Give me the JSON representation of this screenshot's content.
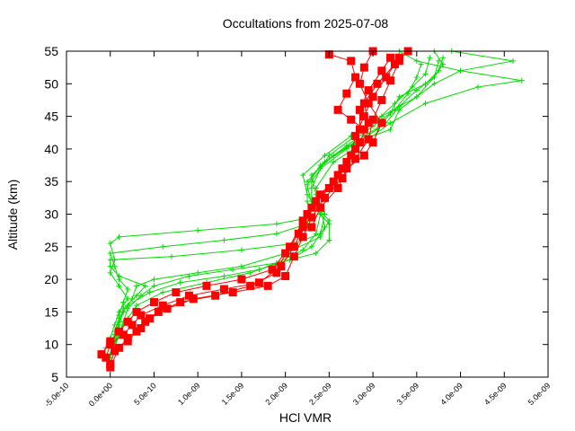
{
  "chart_data": {
    "type": "scatter",
    "title": "Occultations from 2025-07-08",
    "xlabel": "HCl VMR",
    "ylabel": "Altitude (km)",
    "xlim": [
      -5e-10,
      5e-09
    ],
    "ylim": [
      5,
      55
    ],
    "xticks": [
      {
        "value": -5e-10,
        "label": "-5.0e-10"
      },
      {
        "value": 0,
        "label": "0.0e+00"
      },
      {
        "value": 5e-10,
        "label": "5.0e-10"
      },
      {
        "value": 1e-09,
        "label": "1.0e-09"
      },
      {
        "value": 1.5e-09,
        "label": "1.5e-09"
      },
      {
        "value": 2e-09,
        "label": "2.0e-09"
      },
      {
        "value": 2.5e-09,
        "label": "2.5e-09"
      },
      {
        "value": 3e-09,
        "label": "3.0e-09"
      },
      {
        "value": 3.5e-09,
        "label": "3.5e-09"
      },
      {
        "value": 4e-09,
        "label": "4.0e-09"
      },
      {
        "value": 4.5e-09,
        "label": "4.5e-09"
      },
      {
        "value": 5e-09,
        "label": "5.0e-09"
      }
    ],
    "yticks": [
      {
        "value": 5,
        "label": "5"
      },
      {
        "value": 10,
        "label": "10"
      },
      {
        "value": 15,
        "label": "15"
      },
      {
        "value": 20,
        "label": "20"
      },
      {
        "value": 25,
        "label": "25"
      },
      {
        "value": 30,
        "label": "30"
      },
      {
        "value": 35,
        "label": "35"
      },
      {
        "value": 40,
        "label": "40"
      },
      {
        "value": 45,
        "label": "45"
      },
      {
        "value": 50,
        "label": "50"
      },
      {
        "value": 55,
        "label": "55"
      }
    ],
    "colors": {
      "red": "#ff0000",
      "green": "#00dd00"
    },
    "series": [
      {
        "name": "green-profile-1",
        "color": "#00dd00",
        "marker": "plus",
        "line": true,
        "points": [
          [
            0.0,
            8
          ],
          [
            3e-11,
            10
          ],
          [
            5e-11,
            12
          ],
          [
            1e-10,
            14
          ],
          [
            2e-10,
            16
          ],
          [
            4.5e-10,
            18
          ],
          [
            8e-10,
            19.5
          ],
          [
            1.3e-09,
            20.5
          ],
          [
            1.7e-09,
            21.5
          ],
          [
            2.05e-09,
            23
          ],
          [
            2.3e-09,
            25
          ],
          [
            2.45e-09,
            28
          ],
          [
            2.4e-09,
            31
          ],
          [
            2.35e-09,
            34
          ],
          [
            2.55e-09,
            38
          ],
          [
            2.9e-09,
            41
          ],
          [
            3.2e-09,
            44
          ],
          [
            3.6e-09,
            47
          ],
          [
            4.2e-09,
            49.5
          ],
          [
            4.7e-09,
            50.5
          ],
          [
            4e-09,
            52
          ],
          [
            3.5e-09,
            53.5
          ],
          [
            3.3e-09,
            55
          ]
        ]
      },
      {
        "name": "green-profile-2",
        "color": "#00dd00",
        "marker": "plus",
        "line": true,
        "points": [
          [
            5e-11,
            9
          ],
          [
            5e-11,
            11
          ],
          [
            1e-10,
            13
          ],
          [
            1.5e-10,
            15
          ],
          [
            2.5e-10,
            17
          ],
          [
            3e-10,
            19
          ],
          [
            5e-10,
            20
          ],
          [
            1e-09,
            21
          ],
          [
            1.5e-09,
            22
          ],
          [
            2e-09,
            24
          ],
          [
            2.4e-09,
            26.5
          ],
          [
            2.5e-09,
            29
          ],
          [
            2.3e-09,
            32
          ],
          [
            2.3e-09,
            35
          ],
          [
            2.5e-09,
            39
          ],
          [
            2.8e-09,
            42
          ],
          [
            3.1e-09,
            45
          ],
          [
            3.5e-09,
            48
          ],
          [
            3.7e-09,
            50
          ],
          [
            4e-09,
            52
          ],
          [
            4.6e-09,
            53.5
          ],
          [
            3.9e-09,
            55
          ]
        ]
      },
      {
        "name": "green-profile-3",
        "color": "#00dd00",
        "marker": "plus",
        "line": true,
        "points": [
          [
            -5e-11,
            9.5
          ],
          [
            0.0,
            11
          ],
          [
            5e-11,
            13
          ],
          [
            1e-10,
            15
          ],
          [
            2e-10,
            17
          ],
          [
            1e-10,
            19
          ],
          [
            0.0,
            21
          ],
          [
            5e-11,
            23
          ],
          [
            0.0,
            25.5
          ],
          [
            1e-10,
            26.5
          ],
          [
            1e-09,
            27.5
          ],
          [
            1.9e-09,
            28.5
          ],
          [
            2.3e-09,
            29.5
          ],
          [
            2.25e-09,
            32
          ],
          [
            2.25e-09,
            35
          ],
          [
            2.45e-09,
            38
          ],
          [
            2.8e-09,
            41
          ],
          [
            3.2e-09,
            43
          ],
          [
            3.3e-09,
            46
          ],
          [
            3.5e-09,
            48
          ],
          [
            3.7e-09,
            51
          ],
          [
            3.8e-09,
            53
          ],
          [
            3.7e-09,
            55
          ]
        ]
      },
      {
        "name": "green-profile-4",
        "color": "#00dd00",
        "marker": "plus",
        "line": true,
        "points": [
          [
            0.0,
            8.5
          ],
          [
            5e-11,
            10.5
          ],
          [
            1e-10,
            12.5
          ],
          [
            1e-10,
            14.5
          ],
          [
            1.5e-10,
            16.5
          ],
          [
            2e-10,
            18.5
          ],
          [
            1e-10,
            20
          ],
          [
            5e-11,
            22
          ],
          [
            0.0,
            24
          ],
          [
            6e-10,
            25
          ],
          [
            1.3e-09,
            26
          ],
          [
            1.9e-09,
            27
          ],
          [
            2.25e-09,
            28.5
          ],
          [
            2.3e-09,
            31
          ],
          [
            2.3e-09,
            34
          ],
          [
            2.4e-09,
            37
          ],
          [
            2.7e-09,
            40
          ],
          [
            3.05e-09,
            43
          ],
          [
            3.2e-09,
            45.5
          ],
          [
            3.3e-09,
            48
          ],
          [
            3.6e-09,
            50
          ],
          [
            3.75e-09,
            52
          ],
          [
            3.8e-09,
            54
          ]
        ]
      },
      {
        "name": "green-profile-5",
        "color": "#00dd00",
        "marker": "plus",
        "line": true,
        "points": [
          [
            5e-11,
            9
          ],
          [
            5e-11,
            11.5
          ],
          [
            1e-10,
            13.5
          ],
          [
            1.5e-10,
            15.5
          ],
          [
            3e-10,
            17.5
          ],
          [
            4e-10,
            19
          ],
          [
            1e-10,
            20.5
          ],
          [
            0.0,
            22
          ],
          [
            0.0,
            23
          ],
          [
            7e-10,
            23.5
          ],
          [
            1.5e-09,
            24.5
          ],
          [
            2.1e-09,
            25.5
          ],
          [
            2.4e-09,
            27
          ],
          [
            2.45e-09,
            30
          ],
          [
            2.35e-09,
            33
          ],
          [
            2.3e-09,
            36
          ],
          [
            2.55e-09,
            39
          ],
          [
            2.9e-09,
            42
          ],
          [
            3.15e-09,
            44
          ],
          [
            3.3e-09,
            46.5
          ],
          [
            3.5e-09,
            49
          ],
          [
            3.7e-09,
            51
          ],
          [
            3.75e-09,
            53.5
          ]
        ]
      },
      {
        "name": "green-profile-6",
        "color": "#00dd00",
        "marker": "plus",
        "line": true,
        "points": [
          [
            0.0,
            8
          ],
          [
            5e-11,
            10
          ],
          [
            1e-10,
            12
          ],
          [
            2e-10,
            14
          ],
          [
            3e-10,
            16
          ],
          [
            6e-10,
            18
          ],
          [
            1.1e-09,
            19.5
          ],
          [
            1.6e-09,
            21
          ],
          [
            1.9e-09,
            22.5
          ],
          [
            2.2e-09,
            24.5
          ],
          [
            2.35e-09,
            27
          ],
          [
            2.4e-09,
            30
          ],
          [
            2.25e-09,
            33
          ],
          [
            2.2e-09,
            36
          ],
          [
            2.45e-09,
            39
          ],
          [
            2.75e-09,
            42
          ],
          [
            3.05e-09,
            44.5
          ],
          [
            3.25e-09,
            47
          ],
          [
            3.45e-09,
            49.5
          ],
          [
            3.6e-09,
            51.5
          ],
          [
            3.65e-09,
            54
          ]
        ]
      },
      {
        "name": "green-profile-7",
        "color": "#00dd00",
        "marker": "plus",
        "line": true,
        "points": [
          [
            5e-11,
            9.5
          ],
          [
            1e-10,
            11.5
          ],
          [
            1.5e-10,
            13.5
          ],
          [
            2e-10,
            15.5
          ],
          [
            3.5e-10,
            17.5
          ],
          [
            5e-10,
            19
          ],
          [
            9e-10,
            20.5
          ],
          [
            1.4e-09,
            21.5
          ],
          [
            1.9e-09,
            22.5
          ],
          [
            2.35e-09,
            24
          ],
          [
            2.5e-09,
            26
          ],
          [
            2.5e-09,
            28.5
          ],
          [
            2.3e-09,
            31.5
          ],
          [
            2.25e-09,
            34.5
          ],
          [
            2.4e-09,
            37.5
          ],
          [
            2.7e-09,
            40.5
          ],
          [
            3e-09,
            43.5
          ],
          [
            3.25e-09,
            46
          ],
          [
            3.4e-09,
            48.5
          ],
          [
            3.5e-09,
            51
          ],
          [
            3.55e-09,
            53
          ]
        ]
      },
      {
        "name": "red-profile-1",
        "color": "#ff0000",
        "marker": "square",
        "line": true,
        "points": [
          [
            -5e-11,
            8
          ],
          [
            0.0,
            10
          ],
          [
            1.5e-10,
            11.5
          ],
          [
            2.5e-10,
            13
          ],
          [
            3.5e-10,
            14.5
          ],
          [
            6e-10,
            16
          ],
          [
            9e-10,
            17.5
          ],
          [
            1.3e-09,
            18.5
          ],
          [
            1.7e-09,
            19.5
          ],
          [
            1.95e-09,
            22
          ],
          [
            2.1e-09,
            25
          ],
          [
            2.2e-09,
            28
          ],
          [
            2.3e-09,
            31
          ],
          [
            2.5e-09,
            34
          ],
          [
            2.65e-09,
            37
          ],
          [
            2.8e-09,
            40
          ],
          [
            2.85e-09,
            43
          ],
          [
            2.85e-09,
            46
          ],
          [
            2.95e-09,
            49
          ],
          [
            3.1e-09,
            52
          ],
          [
            3.2e-09,
            54
          ]
        ]
      },
      {
        "name": "red-profile-2",
        "color": "#ff0000",
        "marker": "square",
        "line": true,
        "points": [
          [
            0.0,
            7
          ],
          [
            5e-11,
            9
          ],
          [
            2e-10,
            10.5
          ],
          [
            3e-10,
            12
          ],
          [
            4e-10,
            13.5
          ],
          [
            5.5e-10,
            15
          ],
          [
            8e-10,
            16.5
          ],
          [
            1.2e-09,
            17.5
          ],
          [
            1.6e-09,
            19
          ],
          [
            1.9e-09,
            21
          ],
          [
            2e-09,
            24
          ],
          [
            2.15e-09,
            27
          ],
          [
            2.25e-09,
            30
          ],
          [
            2.4e-09,
            33
          ],
          [
            2.6e-09,
            36
          ],
          [
            2.75e-09,
            39
          ],
          [
            2.8e-09,
            42
          ],
          [
            2.9e-09,
            45
          ],
          [
            3e-09,
            48
          ],
          [
            3.15e-09,
            51
          ],
          [
            3.3e-09,
            54
          ]
        ]
      },
      {
        "name": "red-profile-3",
        "color": "#ff0000",
        "marker": "square",
        "line": true,
        "points": [
          [
            -1e-10,
            8.5
          ],
          [
            0.0,
            10.5
          ],
          [
            1e-10,
            12
          ],
          [
            2e-10,
            13.5
          ],
          [
            3e-10,
            15
          ],
          [
            5e-10,
            16.5
          ],
          [
            7.5e-10,
            18
          ],
          [
            1.1e-09,
            19
          ],
          [
            1.5e-09,
            20
          ],
          [
            1.85e-09,
            21.5
          ],
          [
            2.05e-09,
            25
          ],
          [
            2.2e-09,
            29
          ],
          [
            2.35e-09,
            32
          ],
          [
            2.55e-09,
            35
          ],
          [
            2.7e-09,
            38
          ],
          [
            2.85e-09,
            41
          ],
          [
            2.95e-09,
            44
          ],
          [
            2.9e-09,
            47
          ],
          [
            3.05e-09,
            50
          ],
          [
            3.25e-09,
            53
          ],
          [
            3.4e-09,
            55
          ]
        ]
      },
      {
        "name": "red-profile-4",
        "color": "#ff0000",
        "marker": "square",
        "line": true,
        "points": [
          [
            0.0,
            6.5
          ],
          [
            1e-10,
            9.5
          ],
          [
            2e-10,
            11
          ],
          [
            3.5e-10,
            12.5
          ],
          [
            4.5e-10,
            14
          ],
          [
            6.5e-10,
            15.5
          ],
          [
            9.5e-10,
            17
          ],
          [
            1.4e-09,
            18
          ],
          [
            1.8e-09,
            19
          ],
          [
            2e-09,
            20.5
          ],
          [
            2.1e-09,
            23.5
          ],
          [
            2.2e-09,
            26.5
          ],
          [
            2.3e-09,
            29.5
          ],
          [
            2.45e-09,
            32.5
          ],
          [
            2.65e-09,
            35.5
          ],
          [
            2.8e-09,
            38.5
          ],
          [
            2.95e-09,
            41.5
          ],
          [
            3e-09,
            44.5
          ],
          [
            3.1e-09,
            47.5
          ],
          [
            3.2e-09,
            50.5
          ],
          [
            3.3e-09,
            53.5
          ]
        ]
      },
      {
        "name": "red-profile-5",
        "color": "#ff0000",
        "marker": "square",
        "line": true,
        "points": [
          [
            2.5e-09,
            54.5
          ],
          [
            2.75e-09,
            53.5
          ],
          [
            2.8e-09,
            51
          ],
          [
            2.7e-09,
            48.5
          ],
          [
            2.6e-09,
            46
          ],
          [
            2.75e-09,
            44.5
          ],
          [
            2.9e-09,
            43
          ]
        ]
      },
      {
        "name": "red-profile-6",
        "color": "#ff0000",
        "marker": "square",
        "line": true,
        "points": [
          [
            3e-09,
            55
          ],
          [
            2.9e-09,
            52.5
          ],
          [
            2.85e-09,
            50
          ],
          [
            2.95e-09,
            47
          ],
          [
            3.1e-09,
            44
          ],
          [
            3e-09,
            41
          ],
          [
            2.9e-09,
            39
          ],
          [
            2.7e-09,
            37
          ],
          [
            2.6e-09,
            34
          ],
          [
            2.4e-09,
            31
          ],
          [
            2.3e-09,
            28
          ]
        ]
      }
    ]
  }
}
